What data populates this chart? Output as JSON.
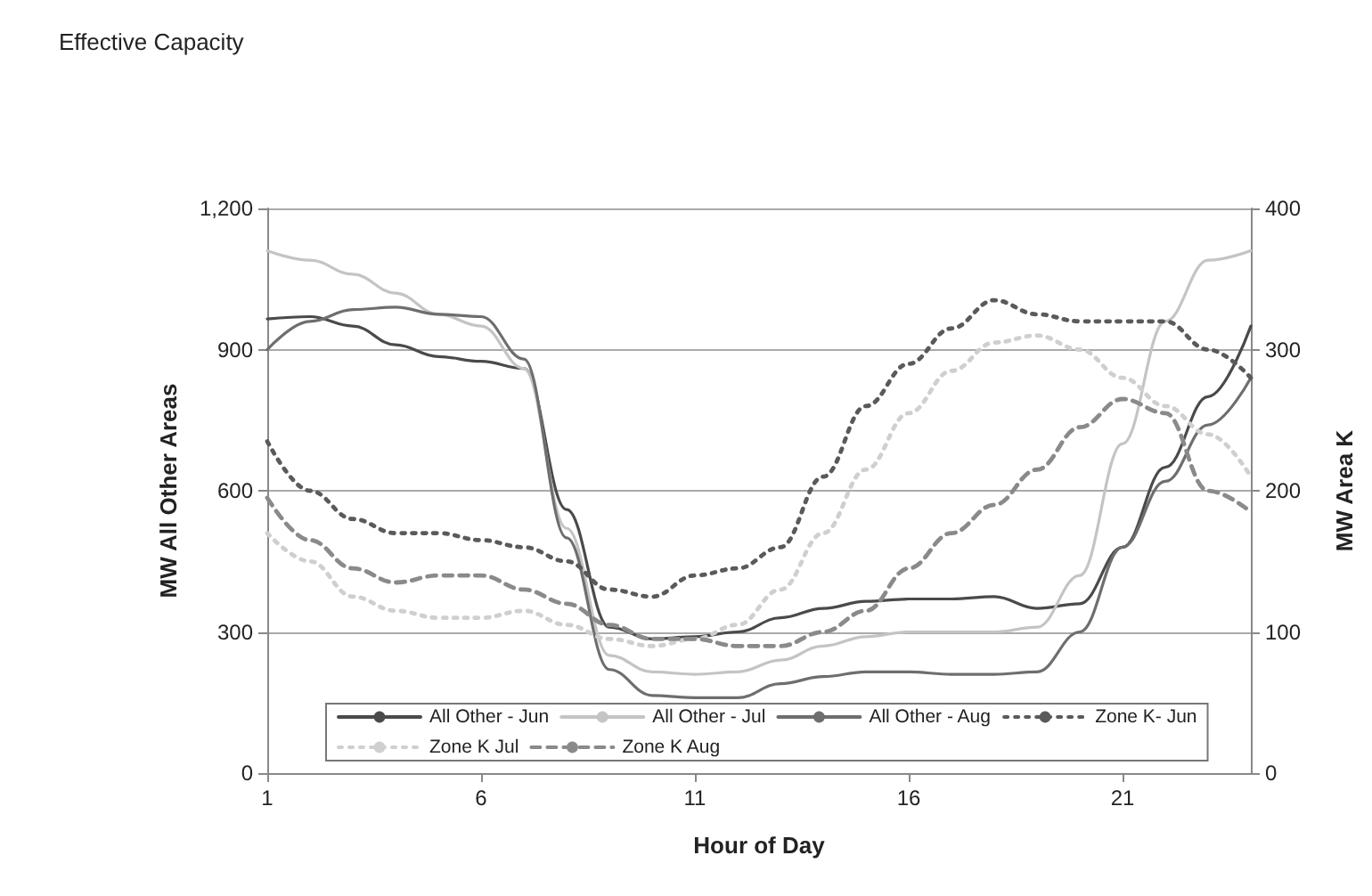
{
  "chart_data": {
    "type": "line",
    "title": "Effective Capacity",
    "xlabel": "Hour of Day",
    "ylabel": "MW All Other Areas",
    "y2label": "MW Area K",
    "x": [
      1,
      2,
      3,
      4,
      5,
      6,
      7,
      8,
      9,
      10,
      11,
      12,
      13,
      14,
      15,
      16,
      17,
      18,
      19,
      20,
      21,
      22,
      23,
      24
    ],
    "series": [
      {
        "name": "All Other - Jun",
        "color": "#4a4a4a",
        "line_style": "solid",
        "values": [
          965,
          970,
          950,
          910,
          885,
          875,
          860,
          560,
          310,
          285,
          290,
          300,
          330,
          350,
          365,
          370,
          370,
          375,
          350,
          360,
          480,
          650,
          800,
          950
        ]
      },
      {
        "name": "All Other - Jul",
        "color": "#c4c4c4",
        "line_style": "solid",
        "values": [
          1110,
          1090,
          1060,
          1020,
          975,
          950,
          860,
          520,
          250,
          215,
          210,
          215,
          240,
          270,
          290,
          300,
          300,
          300,
          310,
          420,
          700,
          960,
          1090,
          1110
        ]
      },
      {
        "name": "All Other - Aug",
        "color": "#6e6e6e",
        "line_style": "solid",
        "values": [
          900,
          960,
          985,
          990,
          975,
          970,
          880,
          500,
          220,
          165,
          160,
          160,
          190,
          205,
          215,
          215,
          210,
          210,
          215,
          300,
          480,
          620,
          740,
          840
        ]
      },
      {
        "name": "Zone K- Jun",
        "color": "#5a5a5a",
        "line_style": "dotted",
        "axis": "y2",
        "values": [
          235,
          200,
          180,
          170,
          170,
          165,
          160,
          150,
          130,
          125,
          140,
          145,
          160,
          210,
          260,
          290,
          315,
          335,
          325,
          320,
          320,
          320,
          300,
          280
        ]
      },
      {
        "name": "Zone K Jul",
        "color": "#cfcfcf",
        "line_style": "dotted",
        "axis": "y2",
        "values": [
          170,
          150,
          125,
          115,
          110,
          110,
          115,
          105,
          95,
          90,
          95,
          105,
          130,
          170,
          215,
          255,
          285,
          305,
          310,
          300,
          280,
          260,
          240,
          210
        ]
      },
      {
        "name": "Zone K Aug",
        "color": "#8a8a8a",
        "line_style": "dashed",
        "axis": "y2",
        "values": [
          195,
          165,
          145,
          135,
          140,
          140,
          130,
          120,
          105,
          95,
          95,
          90,
          90,
          100,
          115,
          145,
          170,
          190,
          215,
          245,
          265,
          255,
          200,
          185
        ]
      }
    ],
    "xlim": [
      1,
      24
    ],
    "xticks": [
      1,
      6,
      11,
      16,
      21
    ],
    "ylim": [
      0,
      1200
    ],
    "yticks": [
      0,
      {
        "value": 300,
        "label": "300"
      },
      {
        "value": 600,
        "label": "600"
      },
      {
        "value": 900,
        "label": "900"
      },
      {
        "value": 1200,
        "label": "1,200"
      }
    ],
    "y2lim": [
      0,
      400
    ],
    "y2ticks": [
      0,
      100,
      200,
      300,
      400
    ],
    "grid": "y",
    "legend": "bottom",
    "marker": "none"
  }
}
